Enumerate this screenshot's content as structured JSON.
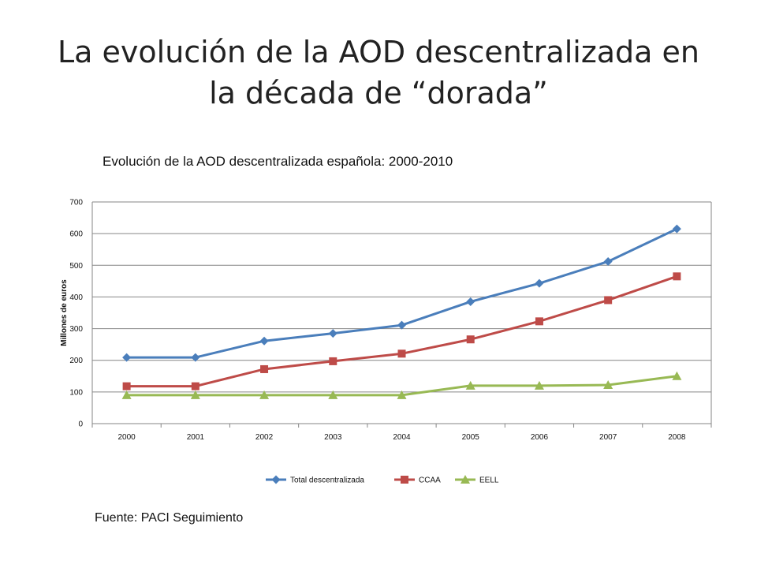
{
  "slide": {
    "title": "La evolución de la AOD descentralizada en la década de “dorada”",
    "source": "Fuente: PACI Seguimiento"
  },
  "chart_data": {
    "type": "line",
    "title": "Evolución de la AOD descentralizada española: 2000-2010",
    "xlabel": "",
    "ylabel": "Millones de euros",
    "categories": [
      "2000",
      "2001",
      "2002",
      "2003",
      "2004",
      "2005",
      "2006",
      "2007",
      "2008"
    ],
    "ylim": [
      0,
      700
    ],
    "yticks": [
      0,
      100,
      200,
      300,
      400,
      500,
      600,
      700
    ],
    "grid": true,
    "legend_position": "bottom",
    "series": [
      {
        "name": "Total descentralizada",
        "color": "#4A7EBB",
        "marker": "diamond",
        "values": [
          209,
          209,
          261,
          285,
          311,
          385,
          443,
          512,
          615
        ]
      },
      {
        "name": "CCAA",
        "color": "#BE4B48",
        "marker": "square",
        "values": [
          118,
          118,
          172,
          197,
          221,
          266,
          323,
          390,
          465
        ]
      },
      {
        "name": "EELL",
        "color": "#98B954",
        "marker": "triangle",
        "values": [
          90,
          90,
          90,
          90,
          90,
          120,
          120,
          122,
          150
        ]
      }
    ]
  }
}
